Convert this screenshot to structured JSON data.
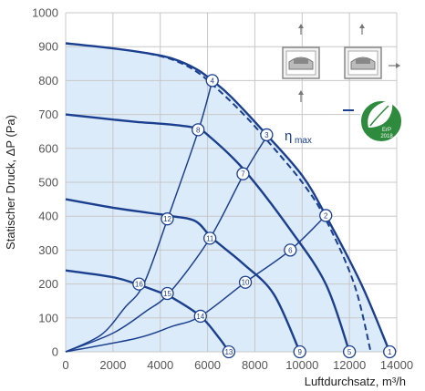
{
  "chart_data": {
    "type": "line",
    "title": "",
    "xlabel": "Luftdurchsatz, m³/h",
    "ylabel": "Statischer Druck, ΔP (Pa)",
    "xlim": [
      0,
      14000
    ],
    "ylim": [
      0,
      1000
    ],
    "x_ticks": [
      0,
      2000,
      4000,
      6000,
      8000,
      10000,
      12000,
      14000
    ],
    "y_ticks": [
      0,
      100,
      200,
      300,
      400,
      500,
      600,
      700,
      800,
      900,
      1000
    ],
    "grid": true,
    "colors": {
      "curve": "#1a3f8f",
      "fill": "#dcebfa",
      "grid": "#c8c8c8",
      "badge": "#2e8a3c"
    },
    "fan_curves": [
      {
        "points": [
          [
            0,
            910
          ],
          [
            2000,
            895
          ],
          [
            3500,
            880
          ],
          [
            4500,
            865
          ],
          [
            5500,
            835
          ],
          [
            6200,
            800
          ],
          [
            7000,
            752
          ],
          [
            8500,
            640
          ],
          [
            10000,
            520
          ],
          [
            11000,
            402
          ],
          [
            12500,
            200
          ],
          [
            13700,
            0
          ]
        ]
      },
      {
        "points": [
          [
            0,
            700
          ],
          [
            2000,
            685
          ],
          [
            3000,
            678
          ],
          [
            4500,
            670
          ],
          [
            5500,
            660
          ],
          [
            6000,
            640
          ],
          [
            7500,
            540
          ],
          [
            9500,
            360
          ],
          [
            11000,
            200
          ],
          [
            12000,
            0
          ]
        ]
      },
      {
        "points": [
          [
            0,
            450
          ],
          [
            2000,
            425
          ],
          [
            3500,
            410
          ],
          [
            4500,
            400
          ],
          [
            5500,
            385
          ],
          [
            6200,
            335
          ],
          [
            7500,
            260
          ],
          [
            8800,
            170
          ],
          [
            9900,
            0
          ]
        ]
      },
      {
        "points": [
          [
            0,
            240
          ],
          [
            2000,
            220
          ],
          [
            3000,
            200
          ],
          [
            4000,
            175
          ],
          [
            4500,
            160
          ],
          [
            5700,
            105
          ],
          [
            6500,
            40
          ],
          [
            6900,
            0
          ]
        ]
      }
    ],
    "dashed_curve": {
      "name": "ηmax",
      "points": [
        [
          3500,
          880
        ],
        [
          4500,
          862
        ],
        [
          5500,
          828
        ],
        [
          6500,
          770
        ],
        [
          7600,
          695
        ],
        [
          8600,
          617
        ],
        [
          10000,
          500
        ],
        [
          11000,
          390
        ],
        [
          12200,
          200
        ],
        [
          12900,
          0
        ]
      ]
    },
    "system_curves": [
      {
        "points": [
          [
            0,
            0
          ],
          [
            1500,
            50
          ],
          [
            2500,
            130
          ],
          [
            3300,
            200
          ],
          [
            4300,
            390
          ],
          [
            5600,
            650
          ],
          [
            6200,
            800
          ]
        ]
      },
      {
        "points": [
          [
            0,
            0
          ],
          [
            2000,
            55
          ],
          [
            3400,
            120
          ],
          [
            4400,
            175
          ],
          [
            6100,
            335
          ],
          [
            7500,
            520
          ],
          [
            8500,
            635
          ]
        ]
      },
      {
        "points": [
          [
            0,
            0
          ],
          [
            3000,
            40
          ],
          [
            4500,
            75
          ],
          [
            5700,
            105
          ],
          [
            7600,
            205
          ],
          [
            9500,
            300
          ],
          [
            11000,
            402
          ]
        ]
      }
    ],
    "operating_points": [
      {
        "label": "1",
        "x": 13700,
        "y": 0
      },
      {
        "label": "2",
        "x": 11000,
        "y": 402
      },
      {
        "label": "3",
        "x": 8500,
        "y": 640
      },
      {
        "label": "4",
        "x": 6200,
        "y": 800
      },
      {
        "label": "5",
        "x": 12000,
        "y": 0
      },
      {
        "label": "6",
        "x": 9500,
        "y": 300
      },
      {
        "label": "7",
        "x": 7500,
        "y": 525
      },
      {
        "label": "8",
        "x": 5600,
        "y": 655
      },
      {
        "label": "9",
        "x": 9900,
        "y": 0
      },
      {
        "label": "10",
        "x": 7600,
        "y": 205
      },
      {
        "label": "11",
        "x": 6100,
        "y": 335
      },
      {
        "label": "12",
        "x": 4300,
        "y": 392
      },
      {
        "label": "13",
        "x": 6900,
        "y": 0
      },
      {
        "label": "14",
        "x": 5700,
        "y": 105
      },
      {
        "label": "15",
        "x": 4300,
        "y": 172
      },
      {
        "label": "16",
        "x": 3100,
        "y": 200
      }
    ],
    "legend": {
      "eta_symbol": "η",
      "eta_suffix": "max",
      "placement": "top-right"
    },
    "badge": {
      "line1": "ErP",
      "line2": "2018"
    }
  }
}
